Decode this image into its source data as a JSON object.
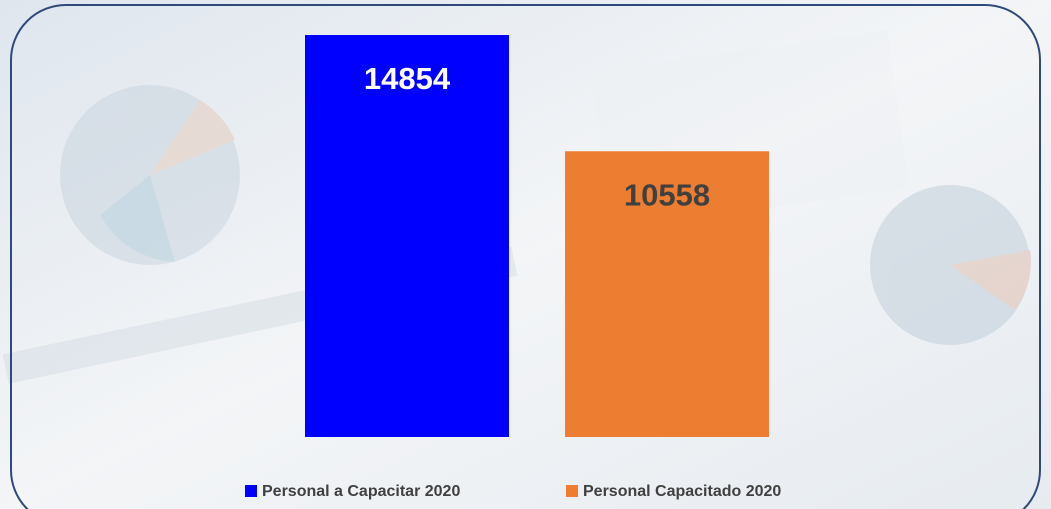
{
  "chart_data": {
    "type": "bar",
    "series": [
      {
        "name": "Personal a Capacitar 2020",
        "color": "#0000ff",
        "values": [
          14854
        ]
      },
      {
        "name": "Personal Capacitado 2020",
        "color": "#ed7d31",
        "values": [
          10558
        ]
      }
    ]
  }
}
